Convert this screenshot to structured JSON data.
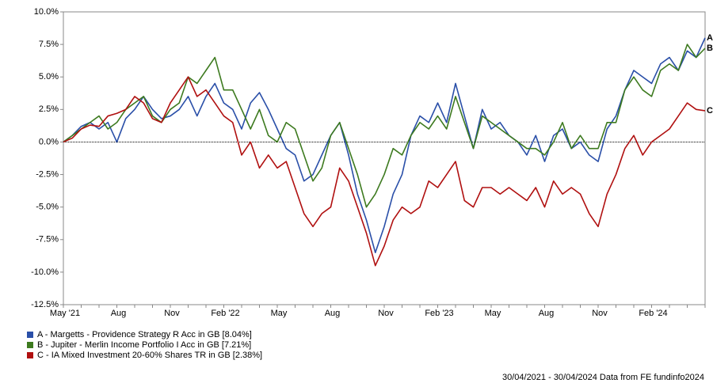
{
  "chart_data": {
    "type": "line",
    "categories": [
      "May '21",
      null,
      null,
      null,
      null,
      null,
      "Aug",
      null,
      null,
      null,
      null,
      null,
      "Nov",
      null,
      null,
      null,
      null,
      null,
      "Feb '22",
      null,
      null,
      null,
      null,
      null,
      "May",
      null,
      null,
      null,
      null,
      null,
      "Aug",
      null,
      null,
      null,
      null,
      null,
      "Nov",
      null,
      null,
      null,
      null,
      null,
      "Feb '23",
      null,
      null,
      null,
      null,
      null,
      "May",
      null,
      null,
      null,
      null,
      null,
      "Aug",
      null,
      null,
      null,
      null,
      null,
      "Nov",
      null,
      null,
      null,
      null,
      null,
      "Feb '24",
      null,
      null,
      null,
      null,
      null,
      null
    ],
    "series": [
      {
        "name": "A - Margetts - Providence Strategy R Acc in GB [8.04%]",
        "label": "A",
        "color": "#2a4fa8",
        "values": [
          0,
          0.5,
          1.2,
          1.5,
          1.0,
          1.5,
          0.0,
          1.8,
          2.5,
          3.5,
          2.5,
          1.8,
          2.0,
          2.5,
          3.5,
          2.0,
          3.5,
          4.5,
          3.0,
          2.5,
          1.0,
          3.0,
          3.8,
          2.5,
          1.0,
          -0.5,
          -1.0,
          -3.0,
          -2.5,
          -1.0,
          0.5,
          1.5,
          -1.0,
          -4.0,
          -6.0,
          -8.5,
          -6.5,
          -4.0,
          -2.5,
          0.5,
          2.0,
          1.5,
          3.0,
          1.5,
          4.5,
          2.0,
          -0.5,
          2.5,
          1.0,
          1.5,
          0.5,
          0.0,
          -1.0,
          0.5,
          -1.5,
          0.5,
          1.0,
          -0.5,
          0.0,
          -1.0,
          -1.5,
          1.0,
          2.0,
          4.0,
          5.5,
          5.0,
          4.5,
          6.0,
          6.5,
          5.5,
          7.0,
          6.5,
          8.0
        ]
      },
      {
        "name": "B - Jupiter - Merlin Income Portfolio I Acc in GB [7.21%]",
        "label": "B",
        "color": "#3d7a1f",
        "values": [
          0,
          0.5,
          1.0,
          1.5,
          2.0,
          1.0,
          1.5,
          2.5,
          3.0,
          3.5,
          2.0,
          1.5,
          2.5,
          3.0,
          5.0,
          4.5,
          5.5,
          6.5,
          4.0,
          4.0,
          2.5,
          1.0,
          2.5,
          0.5,
          0.0,
          1.5,
          1.0,
          -1.0,
          -3.0,
          -2.0,
          0.5,
          1.5,
          -0.5,
          -2.5,
          -5.0,
          -4.0,
          -2.5,
          -0.5,
          -1.0,
          0.5,
          1.5,
          1.0,
          2.0,
          1.0,
          3.5,
          1.5,
          -0.5,
          2.0,
          1.5,
          1.0,
          0.5,
          0.0,
          -0.5,
          -0.5,
          -1.0,
          0.0,
          1.5,
          -0.5,
          0.5,
          -0.5,
          -0.5,
          1.5,
          1.5,
          4.0,
          5.0,
          4.0,
          3.5,
          5.5,
          6.0,
          5.5,
          7.5,
          6.5,
          7.2
        ]
      },
      {
        "name": "C - IA Mixed Investment 20-60% Shares TR in GB [2.38%]",
        "label": "C",
        "color": "#b01010",
        "values": [
          0,
          0.3,
          1.0,
          1.3,
          1.2,
          2.0,
          2.2,
          2.5,
          3.5,
          3.0,
          1.8,
          1.5,
          3.0,
          4.0,
          5.0,
          3.5,
          4.0,
          3.0,
          2.0,
          1.5,
          -1.0,
          0.0,
          -2.0,
          -1.0,
          -2.0,
          -1.5,
          -3.5,
          -5.5,
          -6.5,
          -5.5,
          -5.0,
          -2.0,
          -3.0,
          -5.0,
          -7.0,
          -9.5,
          -8.0,
          -6.0,
          -5.0,
          -5.5,
          -5.0,
          -3.0,
          -3.5,
          -2.5,
          -1.5,
          -4.5,
          -5.0,
          -3.5,
          -3.5,
          -4.0,
          -3.5,
          -4.0,
          -4.5,
          -3.5,
          -5.0,
          -3.0,
          -4.0,
          -3.5,
          -4.0,
          -5.5,
          -6.5,
          -4.0,
          -2.5,
          -0.5,
          0.5,
          -1.0,
          0.0,
          0.5,
          1.0,
          2.0,
          3.0,
          2.5,
          2.4
        ]
      }
    ],
    "ylim": [
      -12.5,
      10
    ],
    "yticks": [
      {
        "value": 10,
        "label": "10.0%"
      },
      {
        "value": 7.5,
        "label": "7.5%"
      },
      {
        "value": 5,
        "label": "5.0%"
      },
      {
        "value": 2.5,
        "label": "2.5%"
      },
      {
        "value": 0,
        "label": "0.0%"
      },
      {
        "value": -2.5,
        "label": "-2.5%"
      },
      {
        "value": -5,
        "label": "-5.0%"
      },
      {
        "value": -7.5,
        "label": "-7.5%"
      },
      {
        "value": -10,
        "label": "-10.0%"
      },
      {
        "value": -12.5,
        "label": "-12.5%"
      }
    ],
    "zero_line": true,
    "grid": false,
    "legend": "bottom-left",
    "footer": "30/04/2021 - 30/04/2024 Data from FE fundinfo2024"
  }
}
